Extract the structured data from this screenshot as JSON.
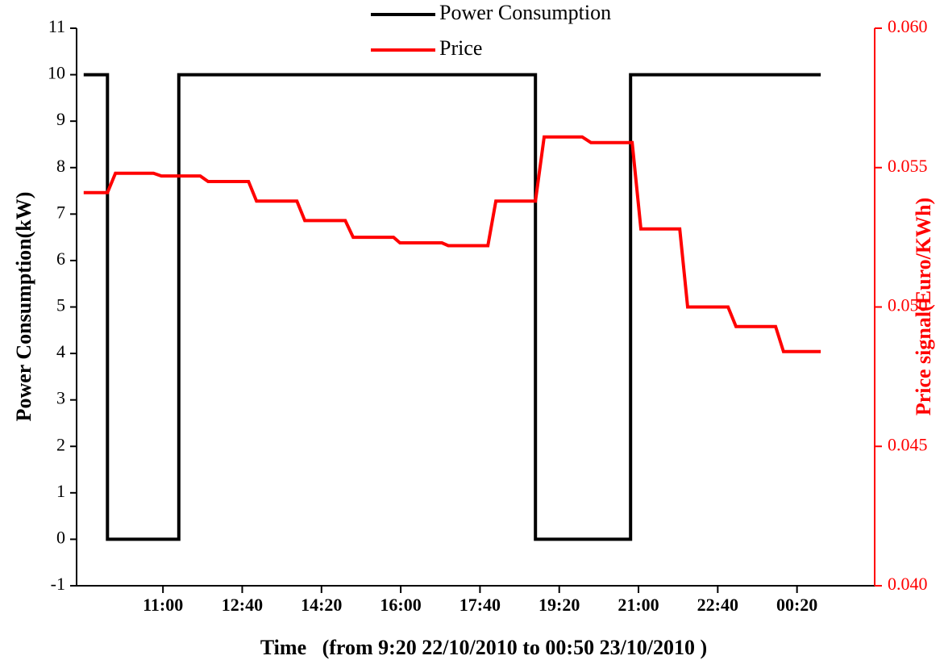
{
  "chart_data": {
    "type": "line",
    "x_label": "Time   (from 9:20 22/10/2010 to 00:50 23/10/2010 )",
    "y_label": "Power Consumption(kW)",
    "y2_label": "Price signal(Euro/KWh)",
    "legend": "top",
    "xlim": [
      551,
      1558
    ],
    "xticks": [
      {
        "value": 660,
        "label": "11:00"
      },
      {
        "value": 760,
        "label": "12:40"
      },
      {
        "value": 860,
        "label": "14:20"
      },
      {
        "value": 960,
        "label": "16:00"
      },
      {
        "value": 1060,
        "label": "17:40"
      },
      {
        "value": 1160,
        "label": "19:20"
      },
      {
        "value": 1260,
        "label": "21:00"
      },
      {
        "value": 1360,
        "label": "22:40"
      },
      {
        "value": 1460,
        "label": "00:20"
      }
    ],
    "ylim": [
      -1,
      11
    ],
    "yticks": [
      -1,
      0,
      1,
      2,
      3,
      4,
      5,
      6,
      7,
      8,
      9,
      10,
      11
    ],
    "y2lim": [
      0.04,
      0.06
    ],
    "y2ticks": [
      {
        "value": 0.04,
        "label": "0.040"
      },
      0.045,
      {
        "value": 0.05,
        "label": "0.050"
      },
      0.055,
      {
        "value": 0.06,
        "label": "0.060"
      }
    ],
    "y2color": "#ff0000",
    "series": [
      {
        "name": "Power Consumption",
        "color": "#000000",
        "x": [
          560,
          590,
          590,
          680,
          680,
          1130,
          1130,
          1250,
          1250,
          1490
        ],
        "values": [
          10,
          10,
          0,
          0,
          10,
          10,
          0,
          0,
          10,
          10
        ]
      },
      {
        "name": "Price",
        "color": "#ff0000",
        "axis": "y2",
        "x": [
          560,
          590,
          600,
          648,
          658,
          707,
          717,
          768,
          778,
          829,
          839,
          890,
          900,
          951,
          959,
          1012,
          1020,
          1070,
          1080,
          1130,
          1141,
          1189,
          1200,
          1252,
          1263,
          1312,
          1322,
          1373,
          1383,
          1433,
          1443,
          1490
        ],
        "values": [
          0.0541,
          0.0541,
          0.0548,
          0.0548,
          0.0547,
          0.0547,
          0.0545,
          0.0545,
          0.0538,
          0.0538,
          0.0531,
          0.0531,
          0.0525,
          0.0525,
          0.0523,
          0.0523,
          0.0522,
          0.0522,
          0.0538,
          0.0538,
          0.0561,
          0.0561,
          0.0559,
          0.0559,
          0.0528,
          0.0528,
          0.05,
          0.05,
          0.0493,
          0.0493,
          0.0484,
          0.0484
        ]
      }
    ]
  }
}
